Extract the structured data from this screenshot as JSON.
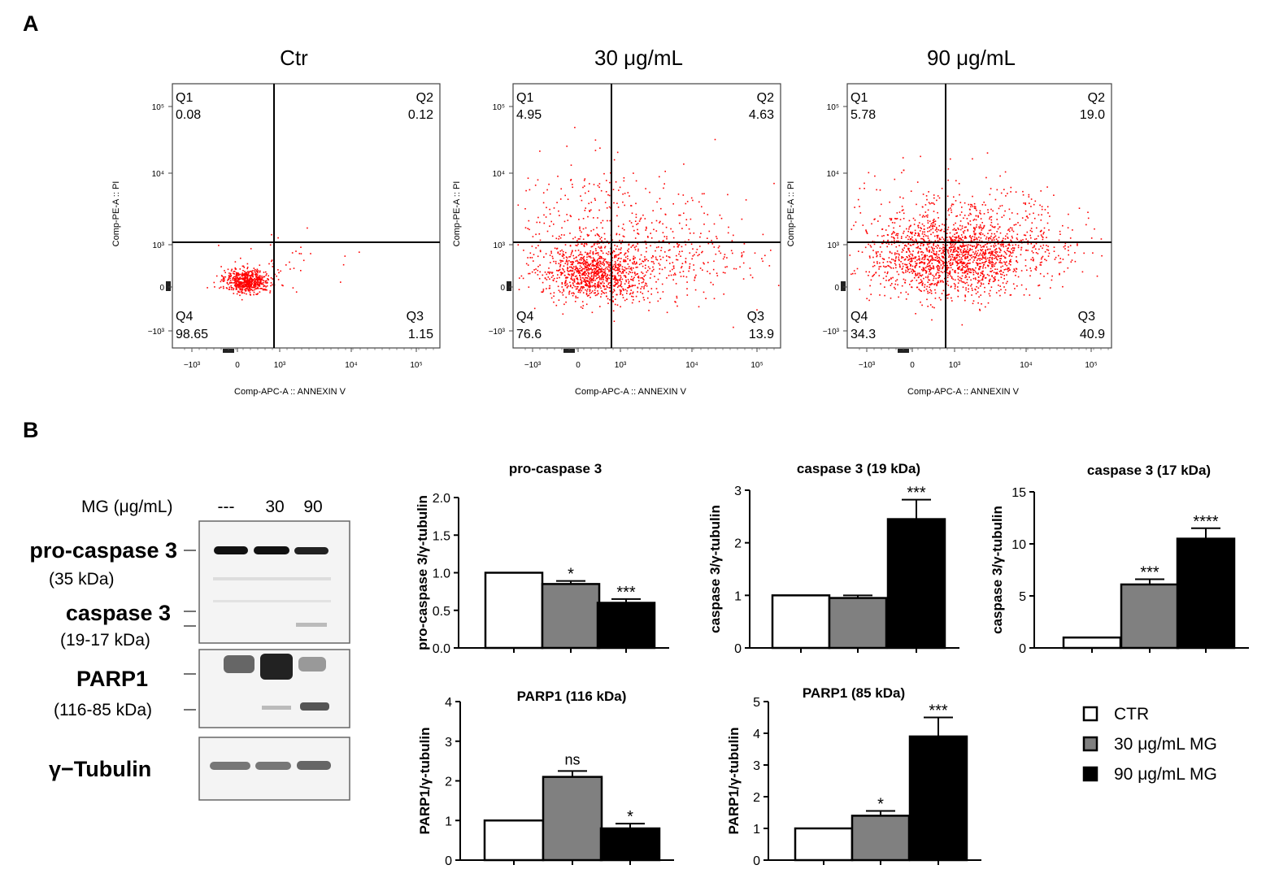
{
  "panels": {
    "a": "A",
    "b": "B"
  },
  "colors": {
    "ctr": "#ffffff",
    "mg30": "#808080",
    "mg90": "#000000",
    "dots": "#ff0000",
    "stroke": "#000000"
  },
  "flow": {
    "ylabel": "Comp-PE-A :: PI",
    "xlabel": "Comp-APC-A :: ANNEXIN V",
    "xticks": [
      "−10³",
      "0",
      "10³",
      "10⁴",
      "10⁵"
    ],
    "yticks": [
      "10⁵",
      "10⁴",
      "10³",
      "0",
      "−10³"
    ],
    "quadrant_names": [
      "Q1",
      "Q2",
      "Q3",
      "Q4"
    ],
    "plots": [
      {
        "title": "Ctr",
        "q1": "0.08",
        "q2": "0.12",
        "q3": "1.15",
        "q4": "98.65"
      },
      {
        "title": "30 μg/mL",
        "q1": "4.95",
        "q2": "4.63",
        "q3": "13.9",
        "q4": "76.6"
      },
      {
        "title": "90 μg/mL",
        "q1": "5.78",
        "q2": "19.0",
        "q3": "40.9",
        "q4": "34.3"
      }
    ]
  },
  "blot": {
    "header": "MG (μg/mL)",
    "lanes": [
      "---",
      "30",
      "90"
    ],
    "labels": {
      "procasp": "pro-caspase 3",
      "procasp_kda": "(35 kDa)",
      "casp": "caspase 3",
      "casp_kda": "(19-17 kDa)",
      "parp": "PARP1",
      "parp_kda": "(116-85 kDa)",
      "tubulin": "γ−Tubulin"
    }
  },
  "legend": [
    "CTR",
    "30 μg/mL MG",
    "90 μg/mL MG"
  ],
  "chart_data": [
    {
      "type": "bar",
      "title": "pro-caspase 3",
      "ylabel": "pro-caspase 3/γ-tubulin",
      "categories": [
        "CTR",
        "30 μg/mL MG",
        "90 μg/mL MG"
      ],
      "values": [
        1.0,
        0.85,
        0.6
      ],
      "errors": [
        0,
        0.04,
        0.05
      ],
      "significance": [
        "",
        "*",
        "***"
      ],
      "ylim": [
        0,
        2.0
      ],
      "yticks": [
        0,
        0.5,
        1.0,
        1.5,
        2.0
      ],
      "yticklabels": [
        "0.0",
        "0.5",
        "1.0",
        "1.5",
        "2.0"
      ]
    },
    {
      "type": "bar",
      "title": "caspase 3 (19 kDa)",
      "ylabel": "caspase 3/γ-tubulin",
      "categories": [
        "CTR",
        "30 μg/mL MG",
        "90 μg/mL MG"
      ],
      "values": [
        1.0,
        0.95,
        2.45
      ],
      "errors": [
        0,
        0.05,
        0.37
      ],
      "significance": [
        "",
        "",
        "***"
      ],
      "ylim": [
        0,
        3
      ],
      "yticks": [
        0,
        1,
        2,
        3
      ],
      "yticklabels": [
        "0",
        "1",
        "2",
        "3"
      ]
    },
    {
      "type": "bar",
      "title": "caspase 3 (17 kDa)",
      "ylabel": "caspase 3/γ-tubulin",
      "categories": [
        "CTR",
        "30 μg/mL MG",
        "90 μg/mL MG"
      ],
      "values": [
        1.0,
        6.1,
        10.5
      ],
      "errors": [
        0,
        0.5,
        1.0
      ],
      "significance": [
        "",
        "***",
        "****"
      ],
      "ylim": [
        0,
        15
      ],
      "yticks": [
        0,
        5,
        10,
        15
      ],
      "yticklabels": [
        "0",
        "5",
        "10",
        "15"
      ]
    },
    {
      "type": "bar",
      "title": "PARP1 (116 kDa)",
      "ylabel": "PARP1/γ-tubulin",
      "categories": [
        "CTR",
        "30 μg/mL MG",
        "90 μg/mL MG"
      ],
      "values": [
        1.0,
        2.1,
        0.8
      ],
      "errors": [
        0,
        0.15,
        0.12
      ],
      "significance": [
        "",
        "ns",
        "*"
      ],
      "ylim": [
        0,
        4
      ],
      "yticks": [
        0,
        1,
        2,
        3,
        4
      ],
      "yticklabels": [
        "0",
        "1",
        "2",
        "3",
        "4"
      ]
    },
    {
      "type": "bar",
      "title": "PARP1 (85 kDa)",
      "ylabel": "PARP1/γ-tubulin",
      "categories": [
        "CTR",
        "30 μg/mL MG",
        "90 μg/mL MG"
      ],
      "values": [
        1.0,
        1.4,
        3.9
      ],
      "errors": [
        0,
        0.15,
        0.6
      ],
      "significance": [
        "",
        "*",
        "***"
      ],
      "ylim": [
        0,
        5
      ],
      "yticks": [
        0,
        1,
        2,
        3,
        4,
        5
      ],
      "yticklabels": [
        "0",
        "1",
        "2",
        "3",
        "4",
        "5"
      ]
    }
  ]
}
